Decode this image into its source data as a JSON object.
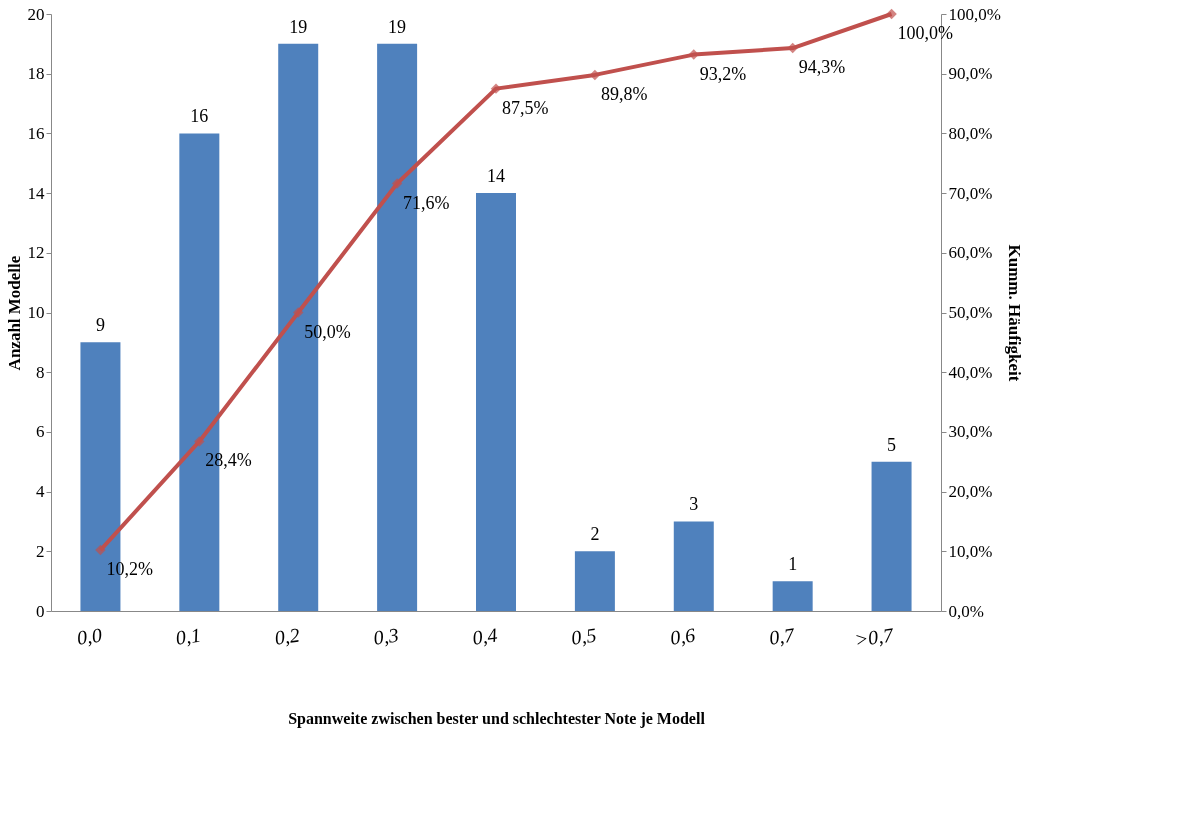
{
  "chart_data": {
    "type": "bar",
    "xlabel": "Spannweite zwischen bester und schlechtester Note je Modell",
    "ylabel": "Anzahl Modelle",
    "y2label": "Kumm. Häufigkeit",
    "categories": [
      "0,0",
      "0,1",
      "0,2",
      "0,3",
      "0,4",
      "0,5",
      "0,6",
      "0,7",
      ">0,7"
    ],
    "series": [
      {
        "color": "#4f81bd",
        "values": [
          9,
          16,
          19,
          19,
          14,
          2,
          3,
          1,
          5
        ]
      },
      {
        "type": "line",
        "axis": "y2",
        "color": "#c0504d",
        "marker": "diamond",
        "line_style": "solid",
        "values": [
          10.2,
          28.4,
          50.0,
          71.6,
          87.5,
          89.8,
          93.2,
          94.3,
          100.0
        ],
        "value_labels": [
          "10,2%",
          "28,4%",
          "50,0%",
          "71,6%",
          "87,5%",
          "89,8%",
          "93,2%",
          "94,3%",
          "100,0%"
        ]
      }
    ],
    "data_labels": true,
    "ylim": [
      0,
      20
    ],
    "yticks": [
      0,
      2,
      4,
      6,
      8,
      10,
      12,
      14,
      16,
      18,
      20
    ],
    "y2lim": [
      0,
      100
    ],
    "y2ticks": [
      {
        "value": 0,
        "label": "0,0%"
      },
      {
        "value": 10,
        "label": "10,0%"
      },
      {
        "value": 20,
        "label": "20,0%"
      },
      {
        "value": 30,
        "label": "30,0%"
      },
      {
        "value": 40,
        "label": "40,0%"
      },
      {
        "value": 50,
        "label": "50,0%"
      },
      {
        "value": 60,
        "label": "60,0%"
      },
      {
        "value": 70,
        "label": "70,0%"
      },
      {
        "value": 80,
        "label": "80,0%"
      },
      {
        "value": 90,
        "label": "90,0%"
      },
      {
        "value": 100,
        "label": "100,0%"
      }
    ],
    "grid": false
  }
}
